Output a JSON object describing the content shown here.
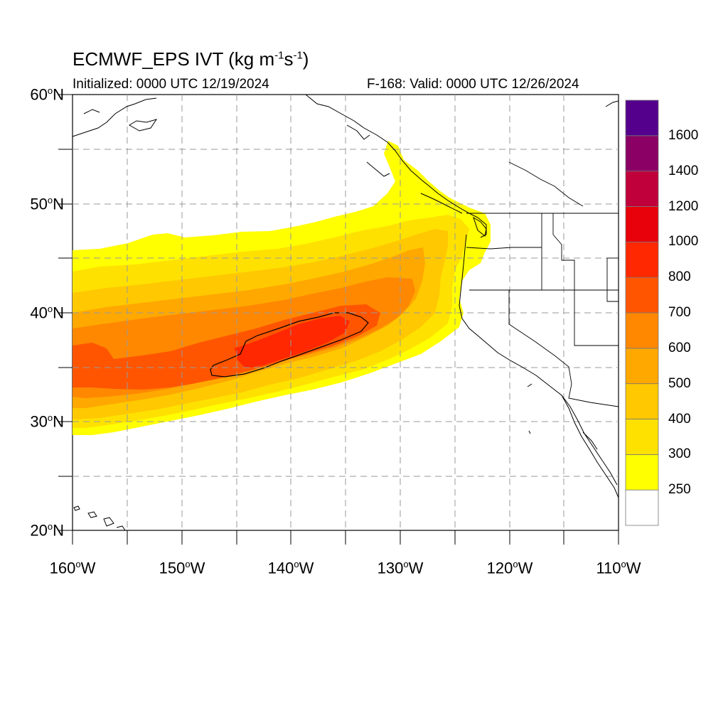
{
  "title": {
    "main": "ECMWF_EPS IVT (kg m",
    "sup1": "-1",
    "mid": "s",
    "sup2": "-1",
    "end": ")"
  },
  "subtitle": {
    "initialized": "Initialized: 0000 UTC 12/19/2024",
    "valid": "F-168: Valid: 0000 UTC 12/26/2024"
  },
  "lat_labels": [
    {
      "value": "60",
      "hemi": "N"
    },
    {
      "value": "50",
      "hemi": "N"
    },
    {
      "value": "40",
      "hemi": "N"
    },
    {
      "value": "30",
      "hemi": "N"
    },
    {
      "value": "20",
      "hemi": "N"
    }
  ],
  "lon_labels": [
    {
      "value": "160",
      "hemi": "W"
    },
    {
      "value": "150",
      "hemi": "W"
    },
    {
      "value": "140",
      "hemi": "W"
    },
    {
      "value": "130",
      "hemi": "W"
    },
    {
      "value": "120",
      "hemi": "W"
    },
    {
      "value": "110",
      "hemi": "W"
    }
  ],
  "map": {
    "lat_range": [
      20,
      60
    ],
    "lon_range": [
      -160,
      -110
    ],
    "gridline_style": "dashed gray"
  },
  "colorbar": {
    "levels": [
      "250",
      "300",
      "400",
      "500",
      "600",
      "700",
      "800",
      "1000",
      "1200",
      "1400",
      "1600"
    ],
    "colors": [
      "#ffffff",
      "#ffff00",
      "#ffe100",
      "#ffc800",
      "#ffa800",
      "#ff8800",
      "#ff5500",
      "#ff2800",
      "#e8000a",
      "#c0003a",
      "#8a0064",
      "#55008c"
    ]
  },
  "chart_data": {
    "type": "heatmap",
    "field": "IVT",
    "contour_level_highlighted": "1000",
    "core_max_region": "approx 35-40N, 147-134W"
  }
}
